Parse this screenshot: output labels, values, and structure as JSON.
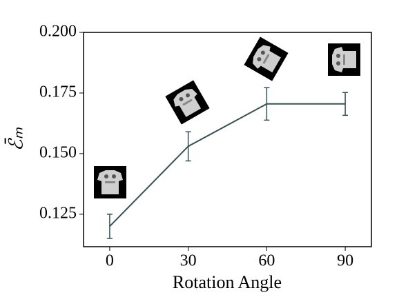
{
  "chart_data": {
    "type": "line",
    "x_label": "Rotation Angle",
    "y_label": "ℰ̄ₘ",
    "x": [
      0,
      30,
      60,
      90
    ],
    "values": [
      0.12,
      0.153,
      0.1705,
      0.1705
    ],
    "errors": [
      0.005,
      0.006,
      0.0067,
      0.0047
    ],
    "color": "#36504f",
    "xlim": [
      -10,
      100
    ],
    "xticks": [
      0,
      30,
      60,
      90
    ],
    "ylim": [
      0.1116,
      0.2
    ],
    "yticks": [
      {
        "value": 0.125,
        "label": "0.125"
      },
      {
        "value": 0.15,
        "label": "0.150"
      },
      {
        "value": 0.175,
        "label": "0.175"
      },
      {
        "value": 0.2,
        "label": "0.200"
      }
    ]
  }
}
